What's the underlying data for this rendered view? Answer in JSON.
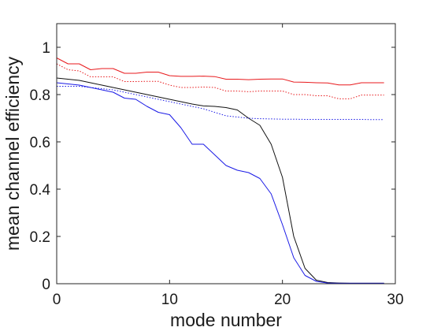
{
  "chart_data": {
    "type": "line",
    "title": "",
    "xlabel": "mode number",
    "ylabel": "mean channel efficiency",
    "xlim": [
      0,
      30
    ],
    "ylim": [
      0,
      1.1
    ],
    "xticks": [
      0,
      10,
      20,
      30
    ],
    "yticks": [
      0,
      0.2,
      0.4,
      0.6,
      0.8,
      1
    ],
    "xtick_labels": [
      "0",
      "10",
      "20",
      "30"
    ],
    "ytick_labels": [
      "0",
      "0.2",
      "0.4",
      "0.6",
      "0.8",
      "1"
    ],
    "grid": false,
    "legend": "none",
    "series": [
      {
        "color": "#e8191c",
        "style": "solid",
        "x": [
          0,
          1,
          2,
          3,
          4,
          5,
          6,
          7,
          8,
          9,
          10,
          11,
          12,
          13,
          14,
          15,
          16,
          17,
          18,
          19,
          20,
          21,
          22,
          23,
          24,
          25,
          26,
          27,
          28,
          29
        ],
        "y": [
          0.955,
          0.93,
          0.93,
          0.905,
          0.91,
          0.91,
          0.89,
          0.89,
          0.895,
          0.895,
          0.88,
          0.877,
          0.877,
          0.878,
          0.876,
          0.865,
          0.865,
          0.863,
          0.865,
          0.866,
          0.866,
          0.853,
          0.852,
          0.85,
          0.849,
          0.841,
          0.841,
          0.85,
          0.85,
          0.85
        ]
      },
      {
        "color": "#e8191c",
        "style": "dotted",
        "x": [
          0,
          1,
          2,
          3,
          4,
          5,
          6,
          7,
          8,
          9,
          10,
          11,
          12,
          13,
          14,
          15,
          16,
          17,
          18,
          19,
          20,
          21,
          22,
          23,
          24,
          25,
          26,
          27,
          28,
          29
        ],
        "y": [
          0.93,
          0.905,
          0.9,
          0.875,
          0.875,
          0.875,
          0.855,
          0.855,
          0.856,
          0.856,
          0.84,
          0.83,
          0.83,
          0.832,
          0.83,
          0.815,
          0.815,
          0.812,
          0.815,
          0.815,
          0.815,
          0.8,
          0.8,
          0.795,
          0.795,
          0.782,
          0.782,
          0.798,
          0.798,
          0.798
        ]
      },
      {
        "color": "#111111",
        "style": "solid",
        "x": [
          0,
          1,
          2,
          3,
          4,
          5,
          6,
          7,
          8,
          9,
          10,
          11,
          12,
          13,
          14,
          15,
          16,
          17,
          18,
          19,
          20,
          21,
          22,
          23,
          24,
          25,
          26,
          27,
          28,
          29
        ],
        "y": [
          0.87,
          0.865,
          0.86,
          0.85,
          0.84,
          0.83,
          0.82,
          0.81,
          0.8,
          0.79,
          0.78,
          0.77,
          0.76,
          0.752,
          0.75,
          0.745,
          0.735,
          0.7,
          0.67,
          0.59,
          0.45,
          0.2,
          0.065,
          0.015,
          0.005,
          0.003,
          0.002,
          0.002,
          0.002,
          0.002
        ]
      },
      {
        "color": "#1a1ae6",
        "style": "dotted",
        "x": [
          0,
          1,
          2,
          3,
          4,
          5,
          6,
          7,
          8,
          9,
          10,
          11,
          12,
          13,
          14,
          15,
          16,
          17,
          18,
          19,
          20,
          21,
          22,
          23,
          24,
          25,
          26,
          27,
          28,
          29
        ],
        "y": [
          0.835,
          0.835,
          0.835,
          0.83,
          0.825,
          0.82,
          0.81,
          0.8,
          0.79,
          0.78,
          0.77,
          0.76,
          0.75,
          0.74,
          0.725,
          0.71,
          0.705,
          0.7,
          0.698,
          0.697,
          0.696,
          0.696,
          0.695,
          0.695,
          0.695,
          0.695,
          0.695,
          0.695,
          0.694,
          0.694
        ]
      },
      {
        "color": "#1a1ae6",
        "style": "solid",
        "x": [
          0,
          1,
          2,
          3,
          4,
          5,
          6,
          7,
          8,
          9,
          10,
          11,
          12,
          13,
          14,
          15,
          16,
          17,
          18,
          19,
          20,
          21,
          22,
          23,
          24,
          25,
          26,
          27,
          28,
          29
        ],
        "y": [
          0.85,
          0.845,
          0.84,
          0.83,
          0.82,
          0.81,
          0.785,
          0.78,
          0.75,
          0.725,
          0.715,
          0.66,
          0.59,
          0.59,
          0.545,
          0.5,
          0.48,
          0.47,
          0.445,
          0.38,
          0.25,
          0.11,
          0.035,
          0.01,
          0.003,
          0.002,
          0.002,
          0.002,
          0.002,
          0.002
        ]
      }
    ]
  }
}
